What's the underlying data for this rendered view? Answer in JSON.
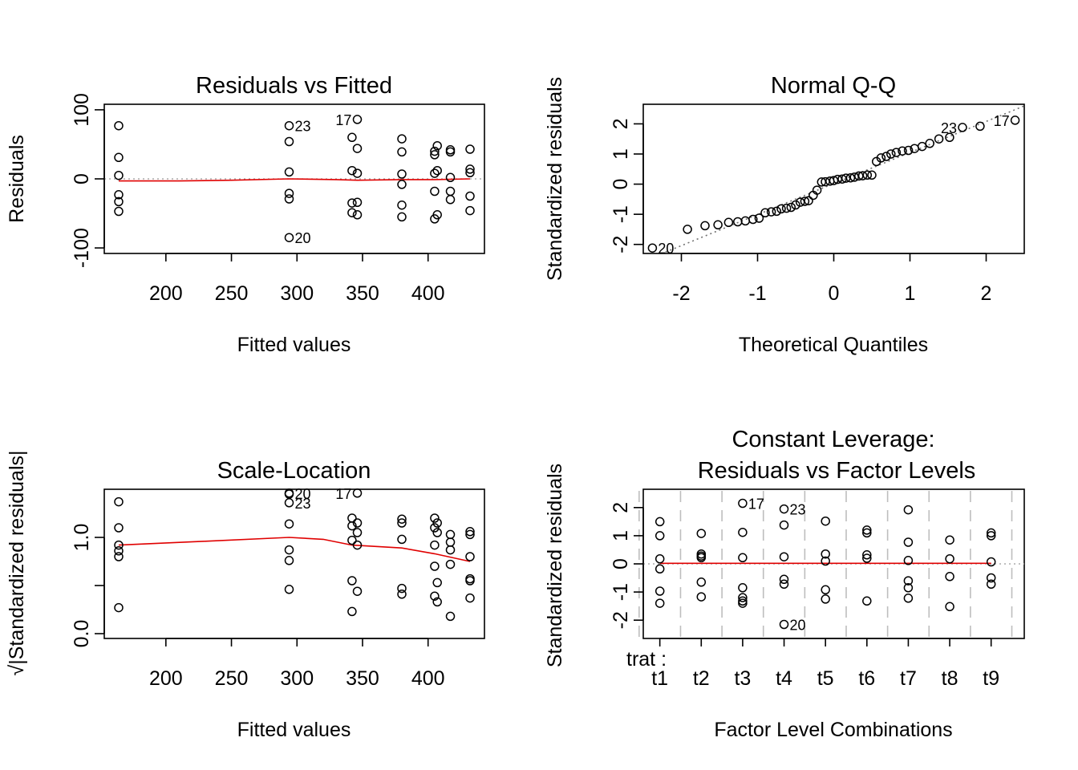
{
  "chart_data": [
    {
      "id": "p1",
      "type": "scatter",
      "title": "Residuals vs Fitted",
      "xlabel": "Fitted values",
      "ylabel": "Residuals",
      "xlim": [
        153,
        443
      ],
      "ylim": [
        -108,
        108
      ],
      "xticks": [
        200,
        250,
        300,
        350,
        400
      ],
      "xtick_labels": [
        "200",
        "250",
        "300",
        "350",
        "400"
      ],
      "yticks": [
        -100,
        0,
        100
      ],
      "ytick_labels": [
        "-100",
        "0",
        "100"
      ],
      "hline": 0,
      "points": [
        [
          164,
          77
        ],
        [
          164,
          31
        ],
        [
          164,
          5
        ],
        [
          164,
          -23
        ],
        [
          164,
          -33
        ],
        [
          164,
          -47
        ],
        [
          294,
          77
        ],
        [
          294,
          54
        ],
        [
          294,
          10
        ],
        [
          294,
          -21
        ],
        [
          294,
          -29
        ],
        [
          294,
          -85
        ],
        [
          342,
          60
        ],
        [
          342,
          12
        ],
        [
          342,
          -35
        ],
        [
          342,
          -49
        ],
        [
          346,
          86
        ],
        [
          346,
          44
        ],
        [
          346,
          8
        ],
        [
          346,
          -34
        ],
        [
          346,
          -52
        ],
        [
          380,
          58
        ],
        [
          380,
          39
        ],
        [
          380,
          7
        ],
        [
          380,
          -8
        ],
        [
          380,
          -38
        ],
        [
          380,
          -55
        ],
        [
          405,
          40
        ],
        [
          405,
          35
        ],
        [
          405,
          8
        ],
        [
          405,
          -18
        ],
        [
          405,
          -58
        ],
        [
          407,
          48
        ],
        [
          407,
          12
        ],
        [
          407,
          -52
        ],
        [
          417,
          42
        ],
        [
          417,
          39
        ],
        [
          417,
          2
        ],
        [
          417,
          -18
        ],
        [
          417,
          -30
        ],
        [
          432,
          43
        ],
        [
          432,
          14
        ],
        [
          432,
          9
        ],
        [
          432,
          -25
        ],
        [
          432,
          -46
        ]
      ],
      "smoother": [
        [
          164,
          -3
        ],
        [
          210,
          -3
        ],
        [
          250,
          -2
        ],
        [
          294,
          0
        ],
        [
          330,
          -1
        ],
        [
          346,
          -2
        ],
        [
          380,
          -1
        ],
        [
          405,
          -1
        ],
        [
          432,
          0
        ]
      ],
      "labels": [
        {
          "text": "23",
          "x": 294,
          "y": 77
        },
        {
          "text": "17",
          "x": 346,
          "y": 86
        },
        {
          "text": "20",
          "x": 294,
          "y": -85
        }
      ]
    },
    {
      "id": "p2",
      "type": "scatter",
      "title": "Normal Q-Q",
      "xlabel": "Theoretical Quantiles",
      "ylabel": "Standardized residuals",
      "xlim": [
        -2.5,
        2.5
      ],
      "ylim": [
        -2.3,
        2.65
      ],
      "xticks": [
        -2,
        -1,
        0,
        1,
        2
      ],
      "xtick_labels": [
        "-2",
        "-1",
        "0",
        "1",
        "2"
      ],
      "yticks": [
        -2,
        -1,
        0,
        1,
        2
      ],
      "ytick_labels": [
        "-2",
        "-1",
        "0",
        "1",
        "2"
      ],
      "refline": {
        "slope": 1.03,
        "intercept": 0.02
      },
      "points": [
        [
          -2.38,
          -2.12
        ],
        [
          -1.92,
          -1.5
        ],
        [
          -1.69,
          -1.38
        ],
        [
          -1.52,
          -1.35
        ],
        [
          -1.38,
          -1.27
        ],
        [
          -1.26,
          -1.25
        ],
        [
          -1.16,
          -1.22
        ],
        [
          -1.06,
          -1.17
        ],
        [
          -0.98,
          -1.13
        ],
        [
          -0.9,
          -0.95
        ],
        [
          -0.82,
          -0.92
        ],
        [
          -0.75,
          -0.9
        ],
        [
          -0.69,
          -0.82
        ],
        [
          -0.62,
          -0.8
        ],
        [
          -0.56,
          -0.77
        ],
        [
          -0.5,
          -0.69
        ],
        [
          -0.44,
          -0.6
        ],
        [
          -0.38,
          -0.57
        ],
        [
          -0.33,
          -0.55
        ],
        [
          -0.27,
          -0.37
        ],
        [
          -0.22,
          -0.2
        ],
        [
          -0.16,
          0.07
        ],
        [
          -0.11,
          0.08
        ],
        [
          -0.05,
          0.1
        ],
        [
          0,
          0.12
        ],
        [
          0.05,
          0.16
        ],
        [
          0.11,
          0.17
        ],
        [
          0.16,
          0.2
        ],
        [
          0.22,
          0.21
        ],
        [
          0.27,
          0.23
        ],
        [
          0.33,
          0.27
        ],
        [
          0.38,
          0.28
        ],
        [
          0.44,
          0.3
        ],
        [
          0.5,
          0.3
        ],
        [
          0.56,
          0.75
        ],
        [
          0.62,
          0.87
        ],
        [
          0.69,
          0.92
        ],
        [
          0.75,
          1
        ],
        [
          0.82,
          1.05
        ],
        [
          0.9,
          1.1
        ],
        [
          0.98,
          1.12
        ],
        [
          1.06,
          1.18
        ],
        [
          1.16,
          1.25
        ],
        [
          1.26,
          1.35
        ],
        [
          1.38,
          1.5
        ],
        [
          1.52,
          1.55
        ],
        [
          1.69,
          1.88
        ],
        [
          1.92,
          1.92
        ],
        [
          2.38,
          2.12
        ]
      ],
      "labels": [
        {
          "text": "20",
          "x": -2.38,
          "y": -2.12
        },
        {
          "text": "23",
          "x": 1.69,
          "y": 1.88
        },
        {
          "text": "17",
          "x": 2.38,
          "y": 2.12
        }
      ]
    },
    {
      "id": "p3",
      "type": "scatter",
      "title": "Scale-Location",
      "xlabel": "Fitted values",
      "ylabel": "√|Standardized residuals|",
      "xlim": [
        153,
        443
      ],
      "ylim": [
        -0.05,
        1.5
      ],
      "xticks": [
        200,
        250,
        300,
        350,
        400
      ],
      "xtick_labels": [
        "200",
        "250",
        "300",
        "350",
        "400"
      ],
      "yticks": [
        0.0,
        0.5,
        1.0
      ],
      "ytick_labels": [
        "0.0",
        "",
        "1.0"
      ],
      "points": [
        [
          164,
          1.37
        ],
        [
          164,
          1.1
        ],
        [
          164,
          0.92
        ],
        [
          164,
          0.86
        ],
        [
          164,
          0.8
        ],
        [
          164,
          0.27
        ],
        [
          294,
          1.46
        ],
        [
          294,
          1.45
        ],
        [
          294,
          1.36
        ],
        [
          294,
          1.14
        ],
        [
          294,
          0.87
        ],
        [
          294,
          0.76
        ],
        [
          294,
          0.46
        ],
        [
          342,
          1.2
        ],
        [
          342,
          1.12
        ],
        [
          342,
          0.97
        ],
        [
          342,
          0.55
        ],
        [
          342,
          0.23
        ],
        [
          346,
          1.46
        ],
        [
          346,
          1.15
        ],
        [
          346,
          1.05
        ],
        [
          346,
          0.92
        ],
        [
          346,
          0.44
        ],
        [
          380,
          1.19
        ],
        [
          380,
          1.15
        ],
        [
          380,
          0.98
        ],
        [
          380,
          0.47
        ],
        [
          380,
          0.41
        ],
        [
          405,
          1.2
        ],
        [
          405,
          1.1
        ],
        [
          405,
          0.92
        ],
        [
          405,
          0.7
        ],
        [
          405,
          0.39
        ],
        [
          407,
          1.15
        ],
        [
          407,
          1.05
        ],
        [
          407,
          0.53
        ],
        [
          407,
          0.33
        ],
        [
          417,
          1.03
        ],
        [
          417,
          0.95
        ],
        [
          417,
          0.87
        ],
        [
          417,
          0.72
        ],
        [
          417,
          0.18
        ],
        [
          432,
          1.06
        ],
        [
          432,
          1.03
        ],
        [
          432,
          0.8
        ],
        [
          432,
          0.57
        ],
        [
          432,
          0.55
        ],
        [
          432,
          0.37
        ]
      ],
      "smoother": [
        [
          164,
          0.92
        ],
        [
          230,
          0.96
        ],
        [
          294,
          1.0
        ],
        [
          320,
          0.98
        ],
        [
          342,
          0.92
        ],
        [
          380,
          0.89
        ],
        [
          405,
          0.83
        ],
        [
          432,
          0.75
        ]
      ],
      "labels": [
        {
          "text": "20",
          "x": 294,
          "y": 1.46
        },
        {
          "text": "23",
          "x": 294,
          "y": 1.36
        },
        {
          "text": "17",
          "x": 346,
          "y": 1.46
        }
      ]
    },
    {
      "id": "p4",
      "type": "scatter",
      "title": "Constant Leverage:",
      "subtitle": "Residuals vs Factor Levels",
      "xlabel": "Factor Level Combinations",
      "ylabel": "Standardized residuals",
      "factor_name": "trat :",
      "categories": [
        "t1",
        "t2",
        "t3",
        "t4",
        "t5",
        "t6",
        "t7",
        "t8",
        "t9"
      ],
      "xlim": [
        0.6,
        9.8
      ],
      "ylim": [
        -2.65,
        2.65
      ],
      "yticks": [
        -2,
        -1,
        0,
        1,
        2
      ],
      "ytick_labels": [
        "-2",
        "-1",
        "0",
        "1",
        "2"
      ],
      "hline": 0,
      "points": [
        [
          1,
          1.5
        ],
        [
          1,
          1
        ],
        [
          1,
          0.18
        ],
        [
          1,
          -0.18
        ],
        [
          1,
          -0.97
        ],
        [
          1,
          -1.4
        ],
        [
          2,
          1.08
        ],
        [
          2,
          0.35
        ],
        [
          2,
          0.28
        ],
        [
          2,
          0.22
        ],
        [
          2,
          -0.65
        ],
        [
          2,
          -1.17
        ],
        [
          3,
          2.15
        ],
        [
          3,
          1.12
        ],
        [
          3,
          0.22
        ],
        [
          3,
          -0.85
        ],
        [
          3,
          -1.2
        ],
        [
          3,
          -1.32
        ],
        [
          3,
          -1.4
        ],
        [
          4,
          1.95
        ],
        [
          4,
          1.38
        ],
        [
          4,
          0.25
        ],
        [
          4,
          -0.55
        ],
        [
          4,
          -0.72
        ],
        [
          4,
          -2.15
        ],
        [
          5,
          1.52
        ],
        [
          5,
          0.35
        ],
        [
          5,
          0.1
        ],
        [
          5,
          -0.92
        ],
        [
          5,
          -1.25
        ],
        [
          6,
          1.2
        ],
        [
          6,
          1.1
        ],
        [
          6,
          0.32
        ],
        [
          6,
          0.2
        ],
        [
          6,
          -1.32
        ],
        [
          7,
          1.92
        ],
        [
          7,
          0.77
        ],
        [
          7,
          0.12
        ],
        [
          7,
          -0.6
        ],
        [
          7,
          -0.85
        ],
        [
          7,
          -1.22
        ],
        [
          8,
          0.85
        ],
        [
          8,
          0.18
        ],
        [
          8,
          -0.45
        ],
        [
          8,
          -1.52
        ],
        [
          9,
          1.1
        ],
        [
          9,
          1.0
        ],
        [
          9,
          0.07
        ],
        [
          9,
          -0.5
        ],
        [
          9,
          -0.72
        ]
      ],
      "smoother": [
        [
          1,
          0.02
        ],
        [
          9,
          0.02
        ]
      ],
      "labels": [
        {
          "text": "17",
          "x": 3,
          "y": 2.15
        },
        {
          "text": "23",
          "x": 4,
          "y": 1.95
        },
        {
          "text": "20",
          "x": 4,
          "y": -2.15
        }
      ]
    }
  ]
}
